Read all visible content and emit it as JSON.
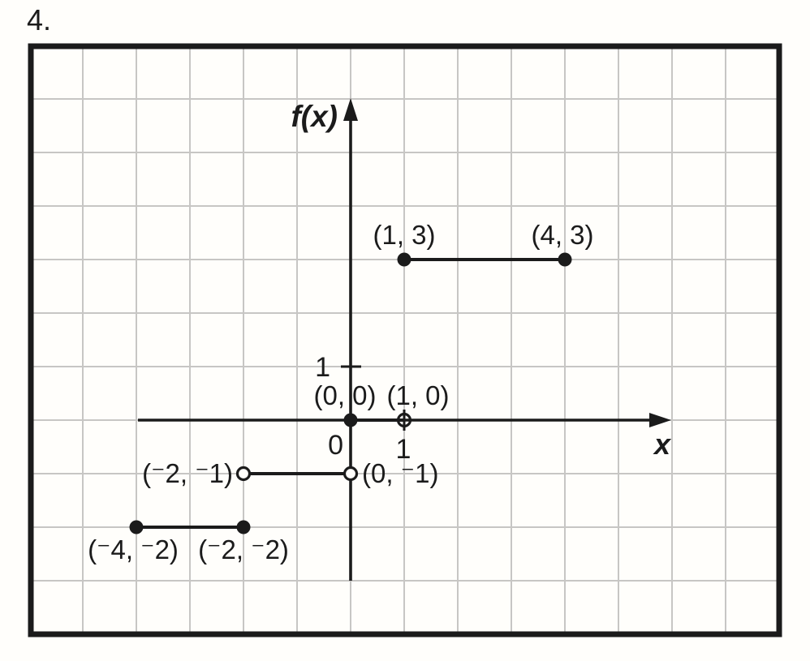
{
  "problem_number": "4.",
  "colors": {
    "ink": "#1b1b1b",
    "grid": "#c7c6c4",
    "background": "#fffefb"
  },
  "chart_data": {
    "type": "line",
    "subtype": "step-function-segments",
    "title": "",
    "xlabel": "x",
    "ylabel": "f(x)",
    "xlim": [
      -6,
      8
    ],
    "ylim": [
      -4,
      7
    ],
    "grid": true,
    "x_axis": {
      "label": "x",
      "origin_label": "0",
      "ticks": [
        {
          "value": 1,
          "label": "1"
        }
      ]
    },
    "y_axis": {
      "label": "f(x)",
      "ticks": [
        {
          "value": 1,
          "label": "1"
        }
      ]
    },
    "segments": [
      {
        "from": {
          "x": -4,
          "y": -2,
          "endpoint": "closed",
          "label": "(⁻4, ⁻2)",
          "label_placement": "below",
          "label_dx": -4
        },
        "to": {
          "x": -2,
          "y": -2,
          "endpoint": "closed",
          "label": "(⁻2, ⁻2)",
          "label_placement": "below",
          "label_dx": 0
        }
      },
      {
        "from": {
          "x": -2,
          "y": -1,
          "endpoint": "open",
          "label": "(⁻2, ⁻1)",
          "label_placement": "left",
          "label_dx": 0
        },
        "to": {
          "x": 0,
          "y": -1,
          "endpoint": "open",
          "label": "(0, ⁻1)",
          "label_placement": "right",
          "label_dx": 0
        }
      },
      {
        "from": {
          "x": 0,
          "y": 0,
          "endpoint": "closed",
          "label": "(0, 0)",
          "label_placement": "above",
          "label_dx": -7
        },
        "to": {
          "x": 1,
          "y": 0,
          "endpoint": "open",
          "label": "(1, 0)",
          "label_placement": "above",
          "label_dx": 17
        }
      },
      {
        "from": {
          "x": 1,
          "y": 3,
          "endpoint": "closed",
          "label": "(1, 3)",
          "label_placement": "above",
          "label_dx": 0
        },
        "to": {
          "x": 4,
          "y": 3,
          "endpoint": "closed",
          "label": "(4, 3)",
          "label_placement": "above",
          "label_dx": -3
        }
      }
    ]
  }
}
